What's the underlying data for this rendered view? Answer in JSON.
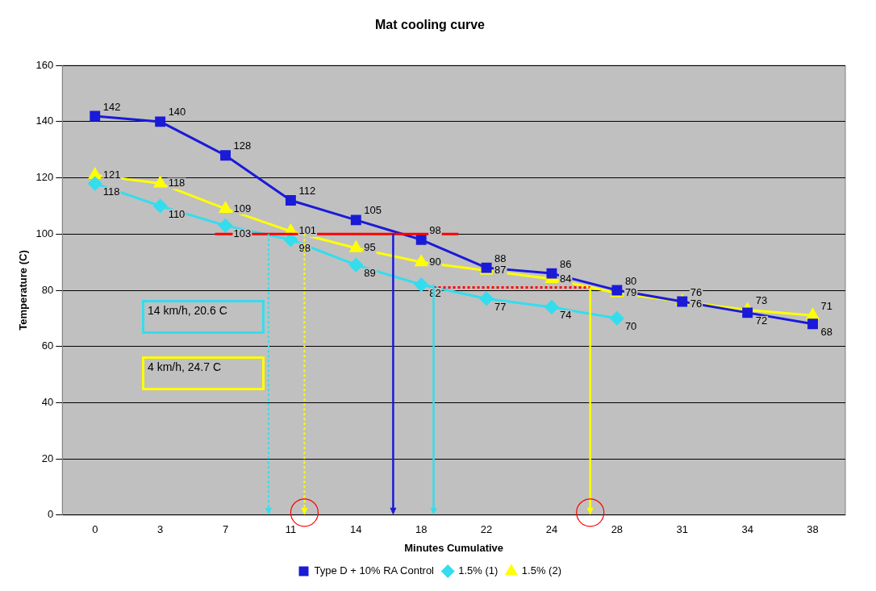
{
  "chart_data": {
    "type": "line",
    "title": "Mat cooling curve",
    "xlabel": "Minutes Cumulative",
    "ylabel": "Temperature (C)",
    "categories": [
      "0",
      "3",
      "7",
      "11",
      "14",
      "18",
      "22",
      "24",
      "28",
      "31",
      "34",
      "38"
    ],
    "series": [
      {
        "name": "Type D + 10% RA Control",
        "color": "#1a1ad8",
        "marker": "square",
        "values": [
          142,
          140,
          128,
          112,
          105,
          98,
          88,
          86,
          80,
          76,
          72,
          68
        ]
      },
      {
        "name": "1.5% (1)",
        "color": "#33ddee",
        "marker": "diamond",
        "values": [
          118,
          110,
          103,
          98,
          89,
          82,
          77,
          74,
          70,
          null,
          null,
          null
        ]
      },
      {
        "name": "1.5% (2)",
        "color": "#ffff00",
        "marker": "triangle",
        "values": [
          121,
          118,
          109,
          101,
          95,
          90,
          87,
          84,
          79,
          76,
          73,
          71
        ]
      }
    ],
    "ylim": [
      0,
      160
    ],
    "yticks": [
      0,
      20,
      40,
      60,
      80,
      100,
      120,
      140,
      160
    ],
    "grid": "y",
    "legend": "bottom",
    "data_labels": true,
    "ref_lines": [
      {
        "axis": "y",
        "value": 100,
        "color": "#ff0000",
        "line_style": "solid"
      },
      {
        "axis": "y",
        "value": 81,
        "color": "#ff0000",
        "line_style": "dotted"
      }
    ],
    "annotations": [
      "14 km/h, 20.6 C",
      "4 km/h, 24.7 C"
    ]
  }
}
